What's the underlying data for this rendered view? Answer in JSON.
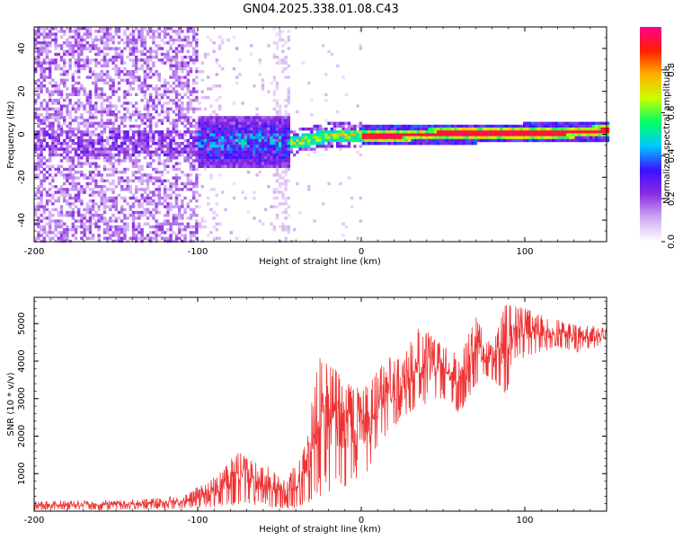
{
  "title": "GN04.2025.338.01.08.C43",
  "chart_data": [
    {
      "type": "heatmap",
      "xlabel": "Height of straight line (km)",
      "ylabel": "Frequency (Hz)",
      "xlim": [
        -200,
        150
      ],
      "ylim": [
        -50,
        50
      ],
      "xticks": [
        -200,
        -100,
        0,
        100
      ],
      "yticks": [
        -40,
        -20,
        0,
        20,
        40
      ],
      "colorbar": {
        "label": "Normalized spectral amplitude",
        "range": [
          0.0,
          1.0
        ],
        "ticks": [
          "0.0",
          "0.2",
          "0.4",
          "0.6",
          "0.8"
        ],
        "colors": [
          "#ffffff",
          "#cfaaf2",
          "#8a2be2",
          "#3d10ff",
          "#00c8ff",
          "#00ff66",
          "#c8ff00",
          "#ffb000",
          "#ff2000",
          "#ff0090"
        ]
      },
      "description_of_signal": [
        {
          "x_from": -200,
          "x_to": -100,
          "amplitude": 0.12,
          "spread_hz": 50
        },
        {
          "x_from": -100,
          "x_to": -45,
          "amplitude": 0.3,
          "spread_hz": 12
        },
        {
          "x_from": -45,
          "x_to": 0,
          "amplitude": 0.75,
          "spread_hz": 3
        },
        {
          "x_from": 0,
          "x_to": 150,
          "amplitude": 0.98,
          "spread_hz": 2
        }
      ],
      "line_frequency_hz": [
        {
          "x": -40,
          "f": -3
        },
        {
          "x": -20,
          "f": 0
        },
        {
          "x": 0,
          "f": 0
        },
        {
          "x": 150,
          "f": 2
        }
      ]
    },
    {
      "type": "line",
      "xlabel": "Height of straight line (km)",
      "ylabel": "SNR (10 * v/v)",
      "xlim": [
        -200,
        150
      ],
      "ylim": [
        0,
        5700
      ],
      "xticks": [
        -200,
        -100,
        0,
        100
      ],
      "yticks": [
        1000,
        2000,
        3000,
        4000,
        5000
      ],
      "series": [
        {
          "name": "SNR",
          "color": "#ee3333",
          "envelope": [
            {
              "x": -200,
              "low": 20,
              "high": 280
            },
            {
              "x": -150,
              "low": 30,
              "high": 300
            },
            {
              "x": -110,
              "low": 50,
              "high": 400
            },
            {
              "x": -90,
              "low": 100,
              "high": 900
            },
            {
              "x": -75,
              "low": 150,
              "high": 1600
            },
            {
              "x": -60,
              "low": 100,
              "high": 1300
            },
            {
              "x": -45,
              "low": 60,
              "high": 900
            },
            {
              "x": -35,
              "low": 100,
              "high": 1700
            },
            {
              "x": -25,
              "low": 400,
              "high": 4300
            },
            {
              "x": -15,
              "low": 500,
              "high": 3800
            },
            {
              "x": -5,
              "low": 800,
              "high": 3300
            },
            {
              "x": 5,
              "low": 1000,
              "high": 3400
            },
            {
              "x": 15,
              "low": 2000,
              "high": 4300
            },
            {
              "x": 25,
              "low": 2500,
              "high": 4000
            },
            {
              "x": 35,
              "low": 2800,
              "high": 5000
            },
            {
              "x": 50,
              "low": 3000,
              "high": 4500
            },
            {
              "x": 60,
              "low": 2600,
              "high": 4100
            },
            {
              "x": 70,
              "low": 3300,
              "high": 5200
            },
            {
              "x": 80,
              "low": 3500,
              "high": 4400
            },
            {
              "x": 88,
              "low": 3000,
              "high": 5500
            },
            {
              "x": 95,
              "low": 4000,
              "high": 5600
            },
            {
              "x": 105,
              "low": 4200,
              "high": 5300
            },
            {
              "x": 120,
              "low": 4300,
              "high": 5100
            },
            {
              "x": 135,
              "low": 4200,
              "high": 5000
            },
            {
              "x": 150,
              "low": 4400,
              "high": 4900
            }
          ]
        }
      ]
    }
  ]
}
